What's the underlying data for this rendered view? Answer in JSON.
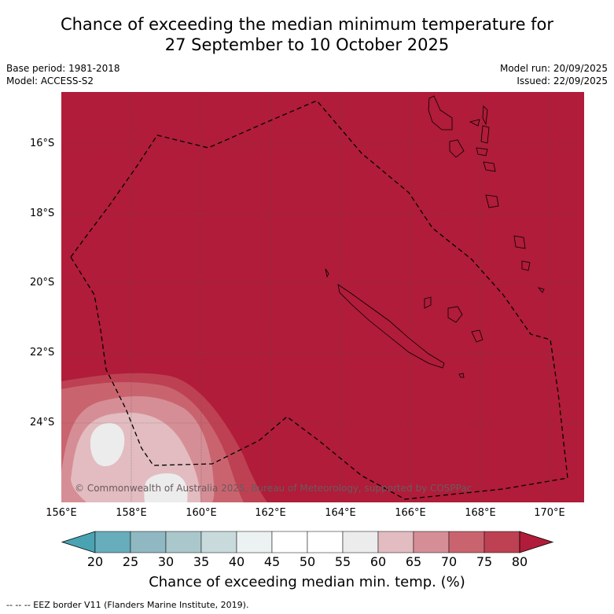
{
  "title_line1": "Chance of exceeding the median minimum temperature for",
  "title_line2": "27 September to 10 October 2025",
  "meta": {
    "base_period": "Base period: 1981-2018",
    "model": "Model: ACCESS-S2",
    "model_run": "Model run: 20/09/2025",
    "issued": "Issued: 22/09/2025"
  },
  "axes": {
    "lat_labels": [
      "16°S",
      "18°S",
      "20°S",
      "22°S",
      "24°S"
    ],
    "lon_labels": [
      "156°E",
      "158°E",
      "160°E",
      "162°E",
      "164°E",
      "166°E",
      "168°E",
      "170°E"
    ]
  },
  "colorbar": {
    "ticks": [
      "20",
      "25",
      "30",
      "35",
      "40",
      "45",
      "50",
      "55",
      "60",
      "65",
      "70",
      "75",
      "80"
    ],
    "colors": [
      "#67adbb",
      "#8fb8c2",
      "#aac7cb",
      "#c8dadc",
      "#ecf1f2",
      "#ffffff",
      "#ffffff",
      "#ececec",
      "#e2bcc0",
      "#d68e96",
      "#c9646f",
      "#bd4152"
    ],
    "low_extend_color": "#4aa3b3",
    "high_extend_color": "#b01c39",
    "label": "Chance of exceeding median min. temp. (%)"
  },
  "map": {
    "background_color": "#b01c39",
    "copyright": "© Commonwealth of Australia 2025, Bureau of Meteorology, supported by COSPPac"
  },
  "footnote": "-- -- -- EEZ border V11 (Flanders Marine Institute, 2019)."
}
